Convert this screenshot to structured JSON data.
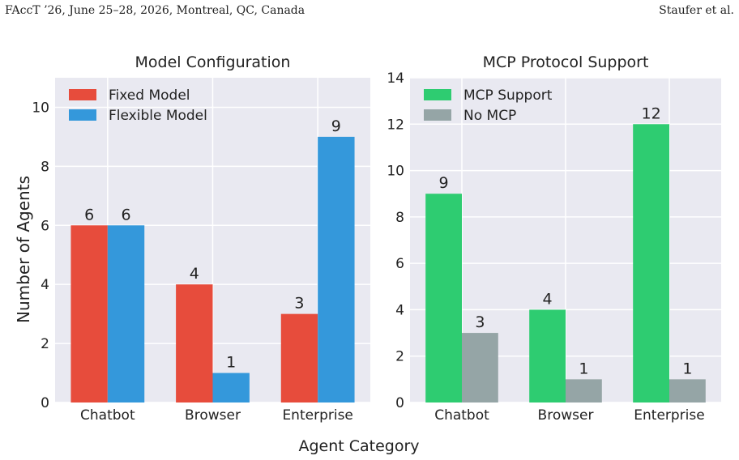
{
  "header": {
    "venue": "FAccT ’26, June 25–28, 2026, Montreal, QC, Canada",
    "authors": "Staufer et al."
  },
  "figure": {
    "shared_xlabel": "Agent Category",
    "shared_ylabel": "Number of Agents"
  },
  "colors": {
    "panel_bg": "#e9e9f1",
    "grid": "#ffffff",
    "fixed": "#e74c3c",
    "flexible": "#3498db",
    "mcp": "#2ecc71",
    "no_mcp": "#95a5a6"
  },
  "chart_data": [
    {
      "type": "bar",
      "title": "Model Configuration",
      "categories": [
        "Chatbot",
        "Browser",
        "Enterprise"
      ],
      "series": [
        {
          "name": "Fixed Model",
          "values": [
            6,
            4,
            3
          ]
        },
        {
          "name": "Flexible Model",
          "values": [
            6,
            1,
            9
          ]
        }
      ],
      "ylim": [
        0,
        11
      ],
      "yticks": [
        0,
        2,
        4,
        6,
        8,
        10
      ],
      "grid": true,
      "legend": "top-left"
    },
    {
      "type": "bar",
      "title": "MCP Protocol Support",
      "categories": [
        "Chatbot",
        "Browser",
        "Enterprise"
      ],
      "series": [
        {
          "name": "MCP Support",
          "values": [
            9,
            4,
            12
          ]
        },
        {
          "name": "No MCP",
          "values": [
            3,
            1,
            1
          ]
        }
      ],
      "ylim": [
        0,
        14
      ],
      "yticks": [
        0,
        2,
        4,
        6,
        8,
        10,
        12,
        14
      ],
      "grid": true,
      "legend": "top-left"
    }
  ]
}
